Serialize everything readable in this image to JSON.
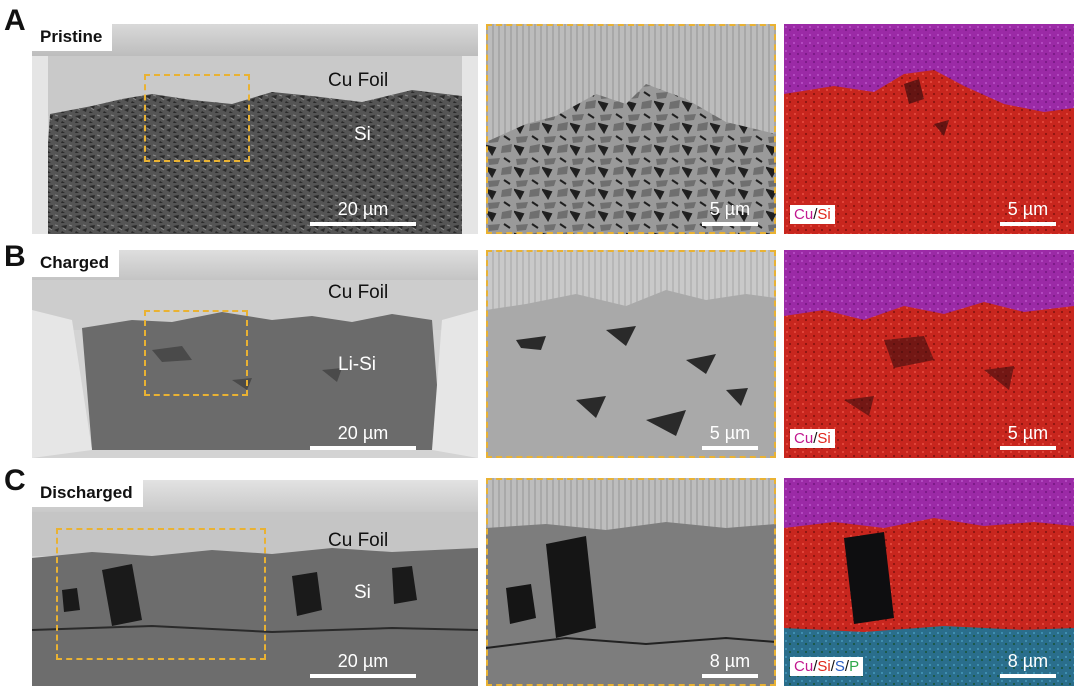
{
  "figure": {
    "rows": [
      {
        "letter": "A",
        "condition": "Pristine",
        "overview": {
          "foil_label": "Cu Foil",
          "layer_label": "Si",
          "scale": "20 µm"
        },
        "zoom": {
          "scale": "5 µm"
        },
        "eds": {
          "scale": "5 µm",
          "legend": [
            {
              "text": "Cu",
              "color": "#c2188f"
            },
            {
              "text": "/",
              "color": "#111111"
            },
            {
              "text": "Si",
              "color": "#e0261b"
            }
          ]
        }
      },
      {
        "letter": "B",
        "condition": "Charged",
        "overview": {
          "foil_label": "Cu Foil",
          "layer_label": "Li-Si",
          "scale": "20 µm"
        },
        "zoom": {
          "scale": "5 µm"
        },
        "eds": {
          "scale": "5 µm",
          "legend": [
            {
              "text": "Cu",
              "color": "#c2188f"
            },
            {
              "text": "/",
              "color": "#111111"
            },
            {
              "text": "Si",
              "color": "#e0261b"
            }
          ]
        }
      },
      {
        "letter": "C",
        "condition": "Discharged",
        "overview": {
          "foil_label": "Cu Foil",
          "layer_label": "Si",
          "scale": "20 µm"
        },
        "zoom": {
          "scale": "8 µm"
        },
        "eds": {
          "scale": "8 µm",
          "legend": [
            {
              "text": "Cu",
              "color": "#c2188f"
            },
            {
              "text": "/",
              "color": "#111111"
            },
            {
              "text": "Si",
              "color": "#e0261b"
            },
            {
              "text": "/",
              "color": "#111111"
            },
            {
              "text": "S",
              "color": "#2a5fc4"
            },
            {
              "text": "/",
              "color": "#111111"
            },
            {
              "text": "P",
              "color": "#2fa84a"
            }
          ]
        }
      }
    ],
    "colors": {
      "cu": "#9b2aa6",
      "si": "#c8261e",
      "electrolyte": "#2a6e8c",
      "frame": "#e9b233"
    }
  }
}
